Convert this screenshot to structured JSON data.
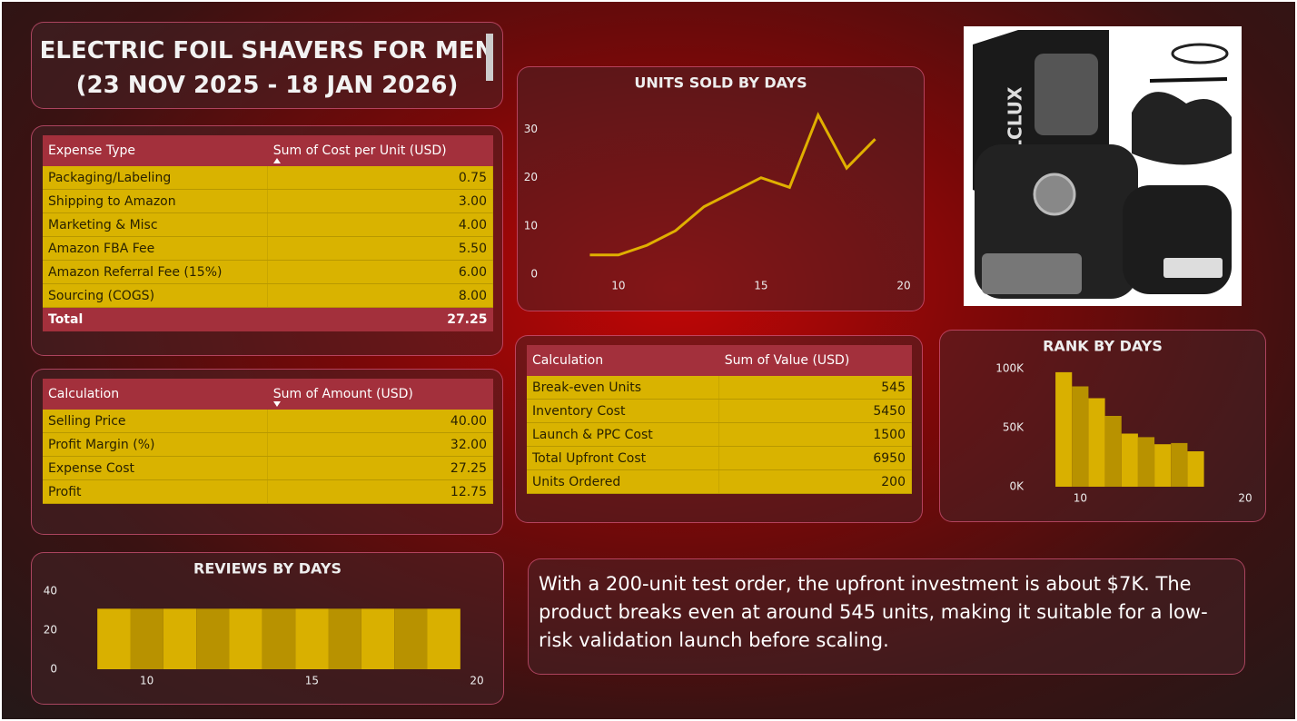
{
  "header": {
    "title": "ELECTRIC FOIL SHAVERS FOR MEN",
    "date_range": "(23 NOV 2025 - 18 JAN 2026)"
  },
  "tables": [
    {
      "columns": [
        "Expense Type",
        "Sum of Cost per Unit (USD)"
      ],
      "rows": [
        [
          "Packaging/Labeling",
          "0.75"
        ],
        [
          "Shipping to Amazon",
          "3.00"
        ],
        [
          "Marketing & Misc",
          "4.00"
        ],
        [
          "Amazon FBA Fee",
          "5.50"
        ],
        [
          "Amazon Referral Fee (15%)",
          "6.00"
        ],
        [
          "Sourcing (COGS)",
          "8.00"
        ]
      ],
      "total": [
        "Total",
        "27.25"
      ]
    },
    {
      "columns": [
        "Calculation",
        "Sum of Amount (USD)"
      ],
      "rows": [
        [
          "Selling Price",
          "40.00"
        ],
        [
          "Profit Margin (%)",
          "32.00"
        ],
        [
          "Expense Cost",
          "27.25"
        ],
        [
          "Profit",
          "12.75"
        ]
      ]
    },
    {
      "columns": [
        "Calculation",
        "Sum of Value (USD)"
      ],
      "rows": [
        [
          "Break-even Units",
          "545"
        ],
        [
          "Inventory Cost",
          "5450"
        ],
        [
          "Launch & PPC Cost",
          "1500"
        ],
        [
          "Total Upfront Cost",
          "6950"
        ],
        [
          "Units Ordered",
          "200"
        ]
      ]
    }
  ],
  "chart_data": [
    {
      "type": "line",
      "title": "UNITS SOLD BY DAYS",
      "color": "#e0b000",
      "x": [
        9,
        10,
        11,
        12,
        13,
        14,
        15,
        16,
        17,
        18,
        19
      ],
      "values": [
        4,
        4,
        6,
        9,
        14,
        17,
        20,
        18,
        33,
        22,
        28
      ],
      "xlim": [
        8,
        20
      ],
      "xticks": [
        10,
        15,
        20
      ],
      "ylim": [
        0,
        35
      ],
      "yticks": [
        0,
        10,
        20,
        30
      ]
    },
    {
      "type": "bar",
      "title": "RANK BY DAYS",
      "colors": [
        "#d9b000",
        "#b89200"
      ],
      "x": [
        9,
        10,
        11,
        12,
        13,
        14,
        15,
        16,
        17
      ],
      "values": [
        97000,
        85000,
        75000,
        60000,
        45000,
        42000,
        36000,
        37000,
        30000
      ],
      "xlim": [
        8,
        20
      ],
      "xticks": [
        10,
        20
      ],
      "ylim": [
        0,
        100000
      ],
      "yticks": [
        {
          "value": 0,
          "label": "0K"
        },
        {
          "value": 50000,
          "label": "50K"
        },
        {
          "value": 100000,
          "label": "100K"
        }
      ]
    },
    {
      "type": "bar",
      "title": "REVIEWS BY DAYS",
      "colors": [
        "#d9b000",
        "#b89200"
      ],
      "x": [
        9,
        10,
        11,
        12,
        13,
        14,
        15,
        16,
        17,
        18,
        19
      ],
      "values": [
        31,
        31,
        31,
        31,
        31,
        31,
        31,
        31,
        31,
        31,
        31
      ],
      "xlim": [
        8,
        20
      ],
      "xticks": [
        10,
        15,
        20
      ],
      "ylim": [
        0,
        40
      ],
      "yticks": [
        0,
        20,
        40
      ]
    }
  ],
  "product_image": {
    "brand": "WELCLUX"
  },
  "summary": "With a 200-unit test order, the upfront investment is about $7K. The product breaks even at around 545 units, making it suitable for a low-risk validation launch before scaling."
}
